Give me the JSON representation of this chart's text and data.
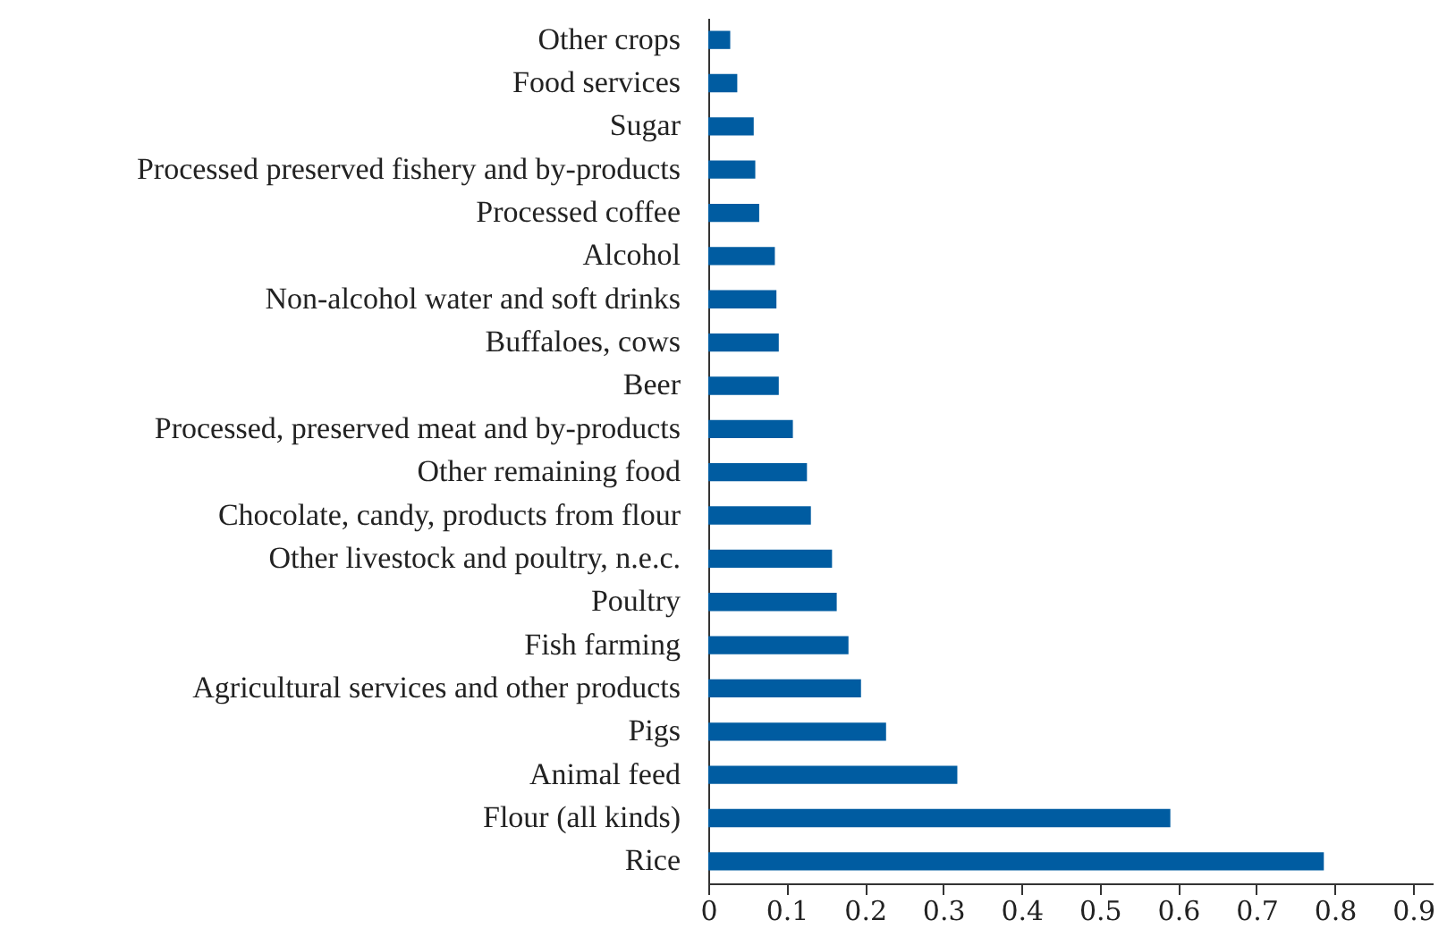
{
  "chart_data": {
    "type": "bar",
    "orientation": "horizontal",
    "categories": [
      "Other crops",
      "Food services",
      "Sugar",
      "Processed preserved fishery and by-products",
      "Processed coffee",
      "Alcohol",
      "Non-alcohol water and soft drinks",
      "Buffaloes, cows",
      "Beer",
      "Processed, preserved meat and by-products",
      "Other remaining food",
      "Chocolate, candy, products from flour",
      "Other livestock and poultry, n.e.c.",
      "Poultry",
      "Fish farming",
      "Agricultural services and other products",
      "Pigs",
      "Animal feed",
      "Flour (all kinds)",
      "Rice"
    ],
    "values": [
      0.028,
      0.037,
      0.058,
      0.06,
      0.065,
      0.085,
      0.087,
      0.09,
      0.09,
      0.108,
      0.126,
      0.131,
      0.158,
      0.164,
      0.179,
      0.195,
      0.227,
      0.318,
      0.59,
      0.786
    ],
    "color": "#005ca1",
    "xlim": [
      0,
      0.925
    ],
    "xticks": [
      0,
      0.1,
      0.2,
      0.3,
      0.4,
      0.5,
      0.6,
      0.7,
      0.8,
      0.9
    ],
    "grid": false
  }
}
